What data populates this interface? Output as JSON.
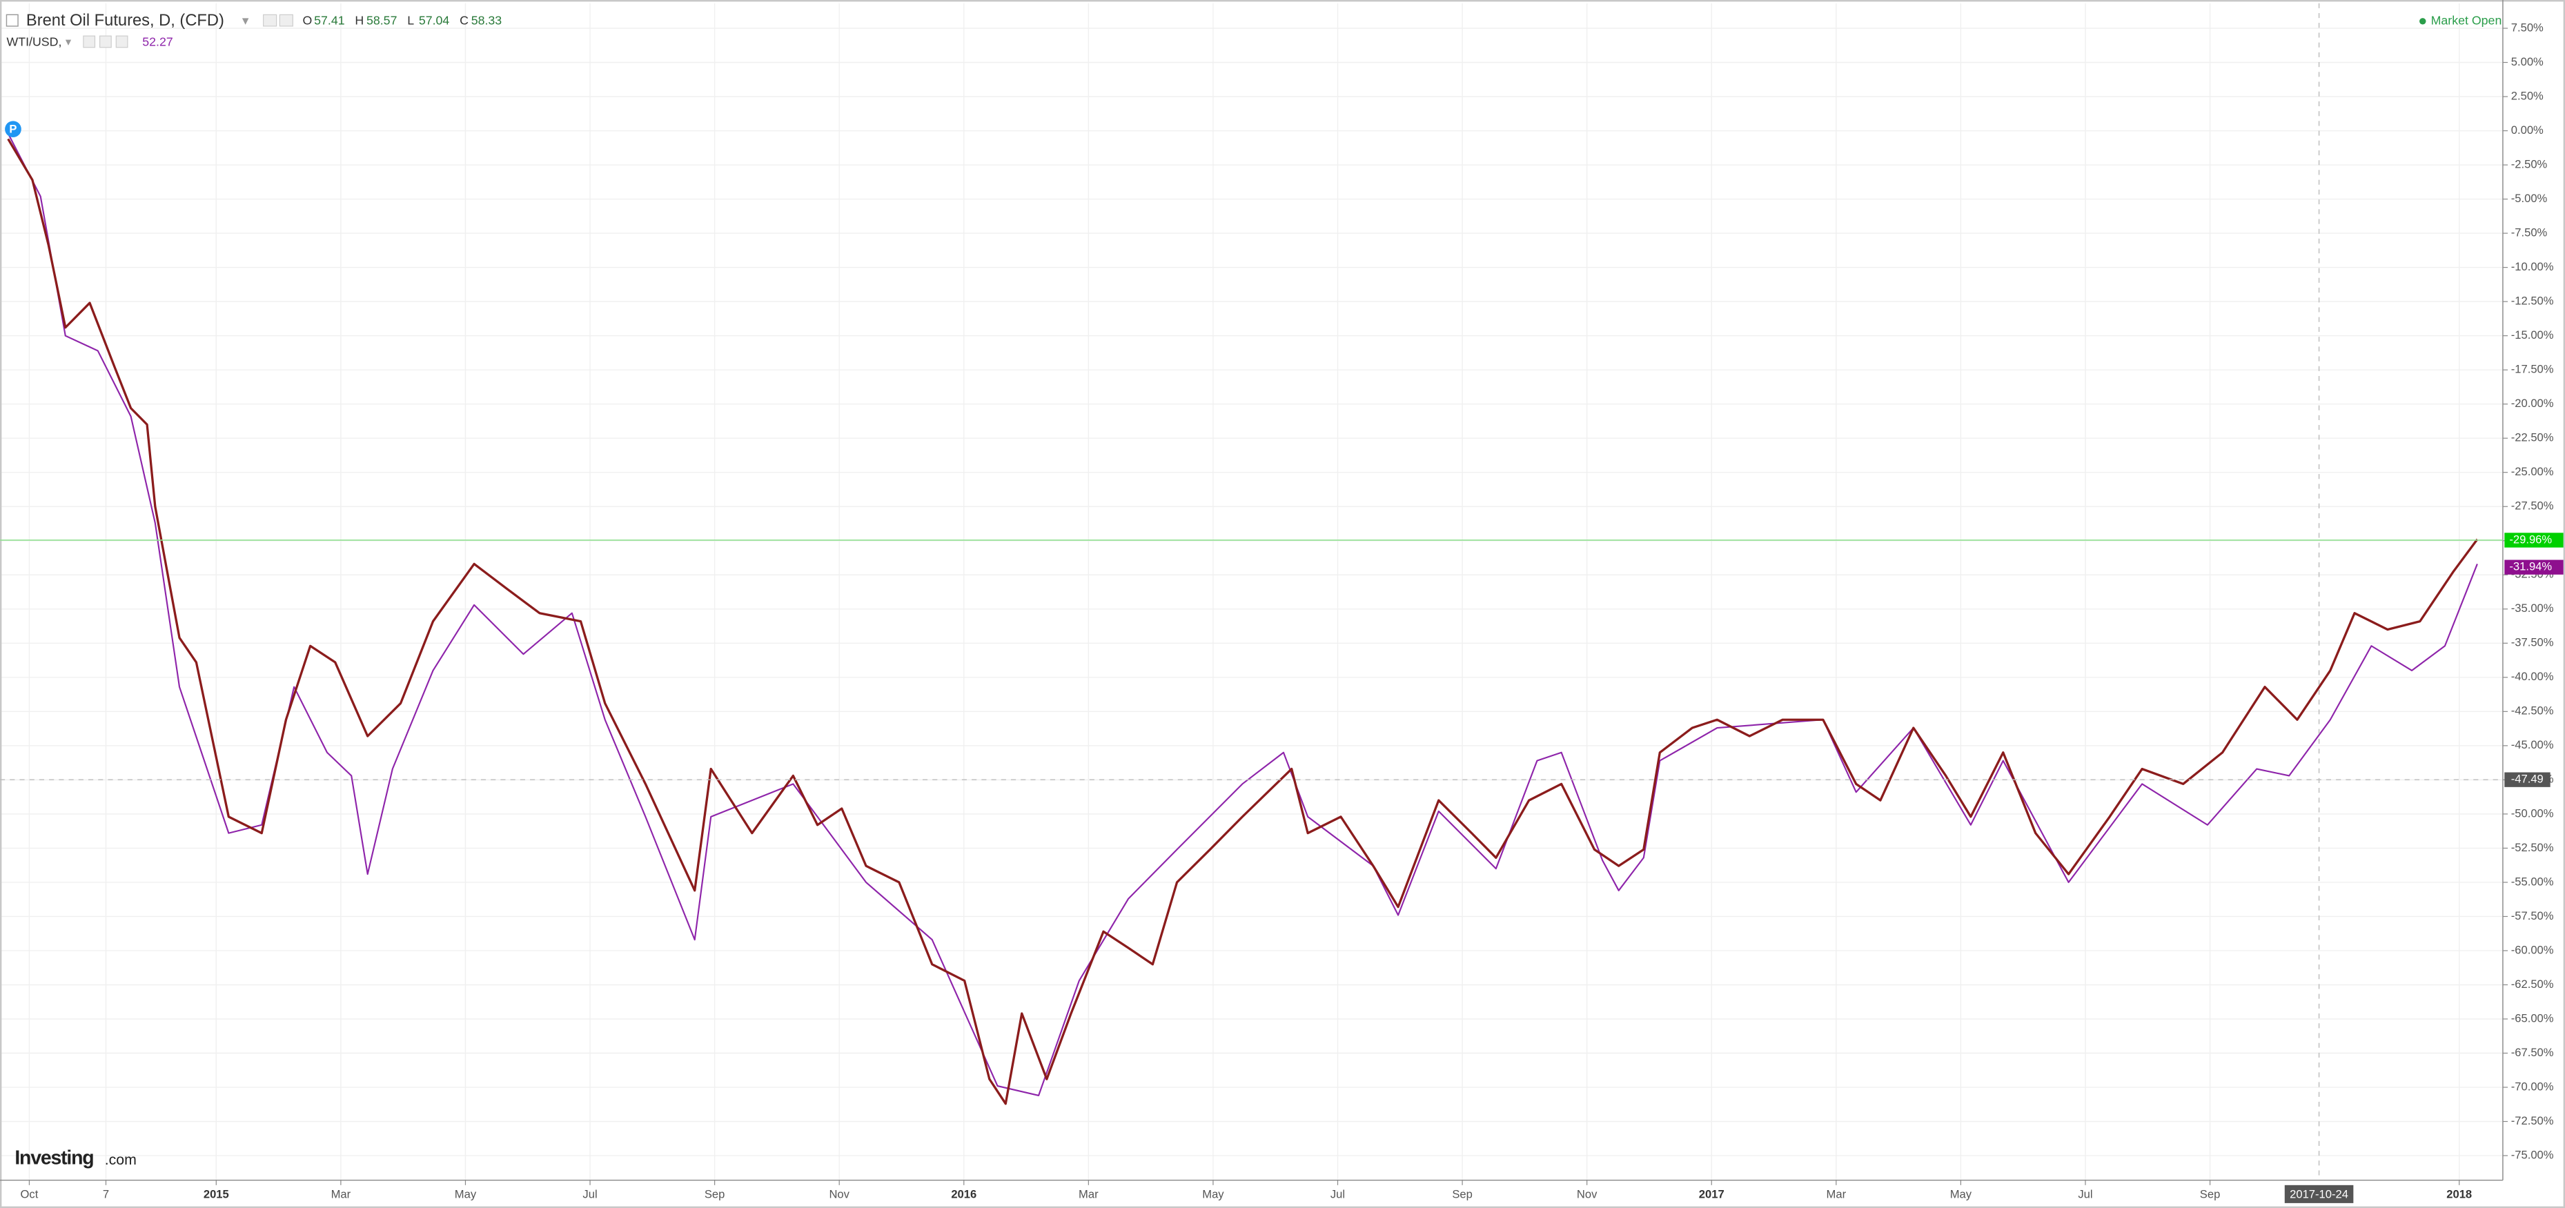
{
  "chart_data": {
    "type": "line",
    "status": "Market Open",
    "brand": "Investing",
    "brand_suffix": ".com",
    "marker": "P",
    "xlim": [
      -0.47,
      39.7
    ],
    "xticks": [
      {
        "value": 0,
        "label": "Oct"
      },
      {
        "value": 1.23,
        "label": "7"
      },
      {
        "value": 3,
        "label": "2015"
      },
      {
        "value": 5,
        "label": "Mar"
      },
      {
        "value": 7,
        "label": "May"
      },
      {
        "value": 9,
        "label": "Jul"
      },
      {
        "value": 11,
        "label": "Sep"
      },
      {
        "value": 13,
        "label": "Nov"
      },
      {
        "value": 15,
        "label": "2016"
      },
      {
        "value": 17,
        "label": "Mar"
      },
      {
        "value": 19,
        "label": "May"
      },
      {
        "value": 21,
        "label": "Jul"
      },
      {
        "value": 23,
        "label": "Sep"
      },
      {
        "value": 25,
        "label": "Nov"
      },
      {
        "value": 27,
        "label": "2017"
      },
      {
        "value": 29,
        "label": "Mar"
      },
      {
        "value": 31,
        "label": "May"
      },
      {
        "value": 33,
        "label": "Jul"
      },
      {
        "value": 35,
        "label": "Sep"
      },
      {
        "value": 39,
        "label": "2018"
      }
    ],
    "ylim": [
      -76.8,
      9.33
    ],
    "yticks": [
      {
        "value": 7.5,
        "label": "7.50%"
      },
      {
        "value": 5,
        "label": "5.00%"
      },
      {
        "value": 2.5,
        "label": "2.50%"
      },
      {
        "value": 0,
        "label": "0.00%"
      },
      {
        "value": -2.5,
        "label": "-2.50%"
      },
      {
        "value": -5,
        "label": "-5.00%"
      },
      {
        "value": -7.5,
        "label": "-7.50%"
      },
      {
        "value": -10,
        "label": "-10.00%"
      },
      {
        "value": -12.5,
        "label": "-12.50%"
      },
      {
        "value": -15,
        "label": "-15.00%"
      },
      {
        "value": -17.5,
        "label": "-17.50%"
      },
      {
        "value": -20,
        "label": "-20.00%"
      },
      {
        "value": -22.5,
        "label": "-22.50%"
      },
      {
        "value": -25,
        "label": "-25.00%"
      },
      {
        "value": -27.5,
        "label": "-27.50%"
      },
      {
        "value": -30,
        "label": "-30.00%"
      },
      {
        "value": -32.5,
        "label": "-32.50%"
      },
      {
        "value": -35,
        "label": "-35.00%"
      },
      {
        "value": -37.5,
        "label": "-37.50%"
      },
      {
        "value": -40,
        "label": "-40.00%"
      },
      {
        "value": -42.5,
        "label": "-42.50%"
      },
      {
        "value": -45,
        "label": "-45.00%"
      },
      {
        "value": -47.5,
        "label": "-47.50%"
      },
      {
        "value": -50,
        "label": "-50.00%"
      },
      {
        "value": -52.5,
        "label": "-52.50%"
      },
      {
        "value": -55,
        "label": "-55.00%"
      },
      {
        "value": -57.5,
        "label": "-57.50%"
      },
      {
        "value": -60,
        "label": "-60.00%"
      },
      {
        "value": -62.5,
        "label": "-62.50%"
      },
      {
        "value": -65,
        "label": "-65.00%"
      },
      {
        "value": -67.5,
        "label": "-67.50%"
      },
      {
        "value": -70,
        "label": "-70.00%"
      },
      {
        "value": -72.5,
        "label": "-72.50%"
      },
      {
        "value": -75,
        "label": "-75.00%"
      }
    ],
    "grid": true,
    "crosshair": {
      "x": {
        "value": 36.75,
        "label": "2017-10-24"
      },
      "y": {
        "value": -47.49,
        "label": "-47.49"
      }
    },
    "series": [
      {
        "name": "Brent Oil Futures, D, (CFD)",
        "color": "#8b1c1c",
        "badge_color": "#00d000",
        "ohlc": [
          {
            "label": "O",
            "value": 57.41
          },
          {
            "label": "H",
            "value": 58.57
          },
          {
            "label": "L",
            "value": 57.04
          },
          {
            "label": "C",
            "value": 58.33
          }
        ],
        "last": {
          "value": -29.96,
          "label": "-29.96%"
        },
        "x": [
          -0.34,
          0.05,
          0.31,
          0.58,
          0.97,
          1.37,
          1.63,
          1.89,
          2.02,
          2.41,
          2.68,
          3.2,
          3.73,
          4.12,
          4.51,
          4.91,
          5.43,
          5.96,
          6.48,
          7.14,
          7.66,
          8.19,
          8.85,
          9.24,
          9.89,
          10.68,
          10.94,
          11.6,
          12.26,
          12.65,
          13.04,
          13.43,
          13.96,
          14.49,
          15.01,
          15.41,
          15.67,
          15.93,
          16.33,
          16.72,
          17.24,
          17.64,
          18.03,
          18.42,
          18.95,
          19.47,
          20.26,
          20.52,
          21.05,
          21.57,
          21.97,
          22.62,
          23.15,
          23.54,
          24.07,
          24.59,
          25.12,
          25.51,
          25.91,
          26.17,
          26.69,
          27.09,
          27.61,
          28.14,
          28.79,
          29.32,
          29.71,
          30.24,
          30.76,
          31.16,
          31.68,
          32.2,
          32.73,
          33.39,
          33.91,
          34.57,
          35.2,
          35.88,
          36.4,
          36.93,
          37.32,
          37.85,
          38.37,
          38.9,
          39.29
        ],
        "values": [
          -0.6,
          -3.6,
          -8.4,
          -14.4,
          -12.6,
          -17.3,
          -20.3,
          -21.5,
          -27.5,
          -37.1,
          -38.9,
          -50.2,
          -51.4,
          -43.1,
          -37.7,
          -38.9,
          -44.3,
          -41.9,
          -35.9,
          -31.7,
          -33.5,
          -35.3,
          -35.9,
          -41.9,
          -47.8,
          -55.6,
          -46.7,
          -51.4,
          -47.2,
          -50.8,
          -49.6,
          -53.8,
          -55,
          -61,
          -62.2,
          -69.4,
          -71.2,
          -64.6,
          -69.4,
          -64.6,
          -58.6,
          -59.8,
          -61,
          -55,
          -52.6,
          -50.2,
          -46.7,
          -51.4,
          -50.2,
          -53.8,
          -56.8,
          -49,
          -51.4,
          -53.2,
          -49,
          -47.8,
          -52.6,
          -53.8,
          -52.6,
          -45.5,
          -43.7,
          -43.1,
          -44.3,
          -43.1,
          -43.1,
          -47.8,
          -49,
          -43.7,
          -47.2,
          -50.2,
          -45.5,
          -51.4,
          -54.4,
          -50.2,
          -46.7,
          -47.8,
          -45.5,
          -40.7,
          -43.1,
          -39.5,
          -35.3,
          -36.5,
          -35.9,
          -32.3,
          -29.9
        ]
      },
      {
        "name": "WTI/USD,",
        "color": "#8e24aa",
        "badge_color": "#8e0f8e",
        "current": 52.27,
        "last": {
          "value": -31.94,
          "label": "-31.94%"
        },
        "x": [
          -0.34,
          0.18,
          0.58,
          1.1,
          1.63,
          2.02,
          2.41,
          3.2,
          3.73,
          4.25,
          4.78,
          5.17,
          5.43,
          5.83,
          6.48,
          7.14,
          7.93,
          8.71,
          9.24,
          9.89,
          10.68,
          10.94,
          12.26,
          13.43,
          14.49,
          15.54,
          16.2,
          16.85,
          17.64,
          18.42,
          19.47,
          20.13,
          20.52,
          21.57,
          21.97,
          22.62,
          23.54,
          24.2,
          24.59,
          25.25,
          25.51,
          25.91,
          26.17,
          27.09,
          28.79,
          29.32,
          30.24,
          31.16,
          31.68,
          32.73,
          33.91,
          34.96,
          35.75,
          36.27,
          36.93,
          37.59,
          38.24,
          38.77,
          39.29
        ],
        "values": [
          -0.2,
          -4.8,
          -15,
          -16.1,
          -20.9,
          -28.7,
          -40.7,
          -51.4,
          -50.8,
          -40.7,
          -45.5,
          -47.2,
          -54.4,
          -46.7,
          -39.5,
          -34.7,
          -38.3,
          -35.3,
          -43.1,
          -50.2,
          -59.2,
          -50.2,
          -47.8,
          -55,
          -59.2,
          -69.9,
          -70.6,
          -62.2,
          -56.2,
          -52.6,
          -47.8,
          -45.5,
          -50.2,
          -53.8,
          -57.4,
          -49.8,
          -54,
          -46.1,
          -45.5,
          -53.4,
          -55.6,
          -53.2,
          -46.1,
          -43.7,
          -43.1,
          -48.4,
          -43.7,
          -50.8,
          -46.1,
          -55,
          -47.8,
          -50.8,
          -46.7,
          -47.2,
          -43.1,
          -37.7,
          -39.5,
          -37.7,
          -31.7
        ]
      }
    ]
  }
}
